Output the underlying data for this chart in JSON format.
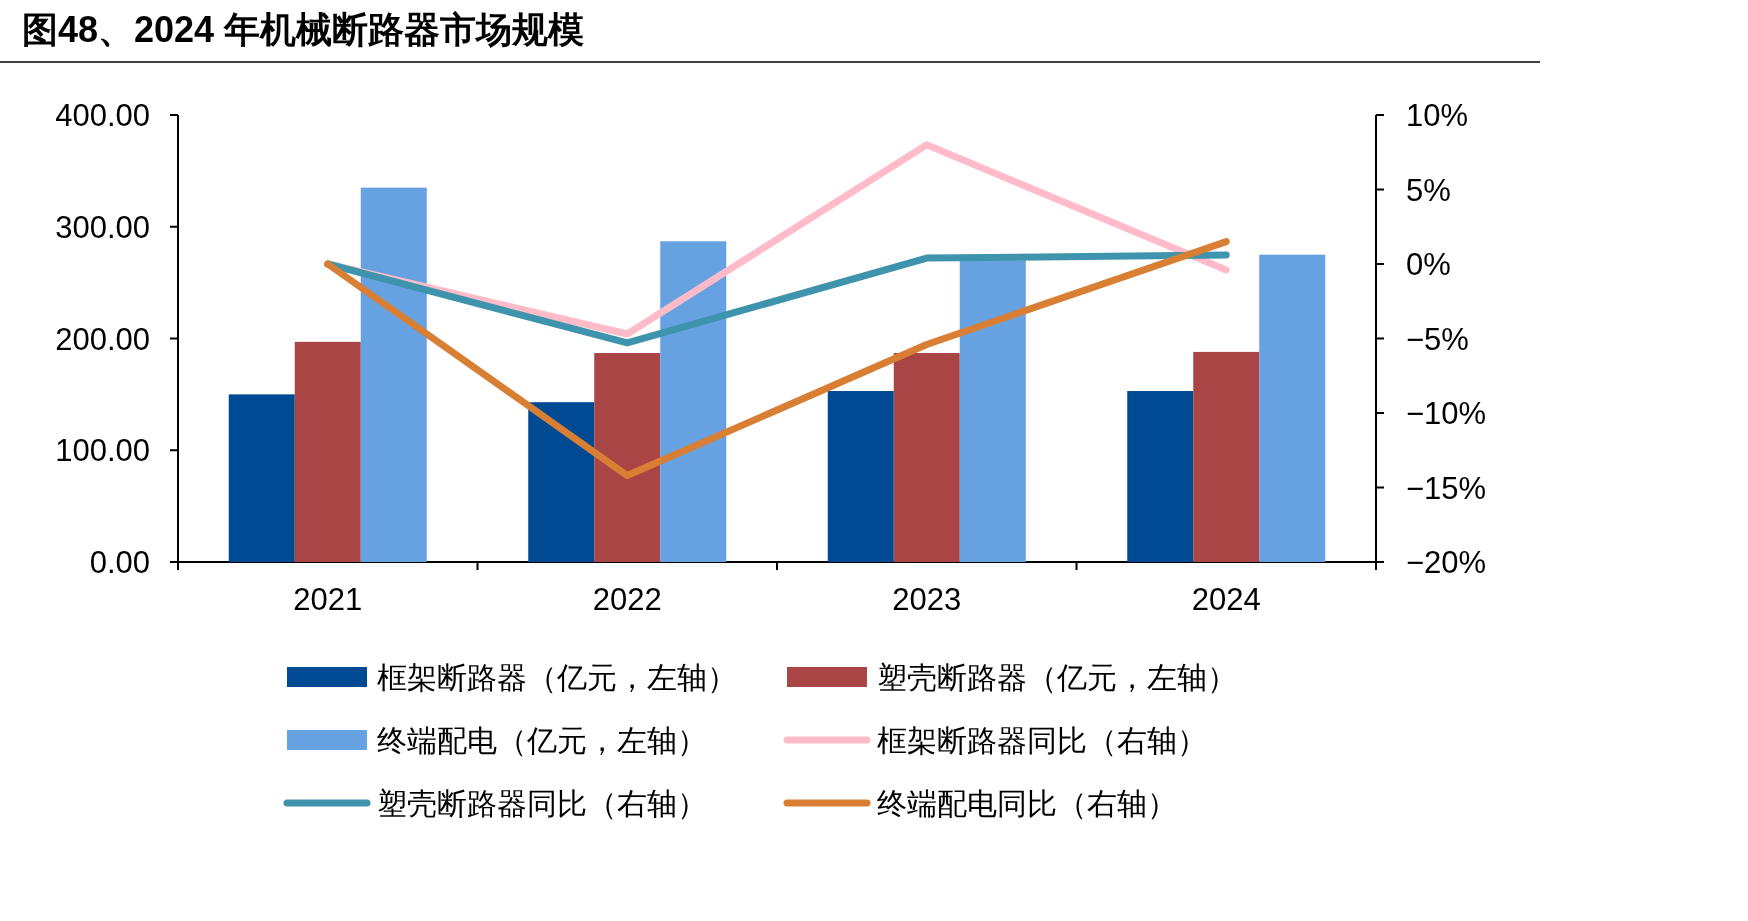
{
  "chart_data": {
    "type": "bar",
    "title": "图48、2024 年机械断路器市场规模",
    "categories": [
      "2021",
      "2022",
      "2023",
      "2024"
    ],
    "ylim": [
      0,
      400
    ],
    "yticks": [
      {
        "value": 0,
        "label": "0.00"
      },
      {
        "value": 100,
        "label": "100.00"
      },
      {
        "value": 200,
        "label": "200.00"
      },
      {
        "value": 300,
        "label": "300.00"
      },
      {
        "value": 400,
        "label": "400.00"
      }
    ],
    "y2lim": [
      -20,
      10
    ],
    "y2ticks": [
      {
        "value": -20,
        "label": "−20%"
      },
      {
        "value": -15,
        "label": "−15%"
      },
      {
        "value": -10,
        "label": "−10%"
      },
      {
        "value": -5,
        "label": "−5%"
      },
      {
        "value": 0,
        "label": "0%"
      },
      {
        "value": 5,
        "label": "5%"
      },
      {
        "value": 10,
        "label": "10%"
      }
    ],
    "grid": false,
    "legend": "bottom",
    "series": [
      {
        "name": "框架断路器（亿元，左轴）",
        "color": "#004a93",
        "values": [
          150,
          143,
          153,
          153
        ]
      },
      {
        "name": "塑壳断路器（亿元，左轴）",
        "color": "#a94545",
        "values": [
          197,
          187,
          187,
          188
        ]
      },
      {
        "name": "终端配电（亿元，左轴）",
        "color": "#66a1e2",
        "values": [
          335,
          287,
          270,
          275
        ]
      },
      {
        "name": "框架断路器同比（右轴）",
        "type": "line",
        "axis": "y2",
        "color": "#ffbcc8",
        "values": [
          0,
          -4.7,
          8.0,
          -0.4
        ]
      },
      {
        "name": "塑壳断路器同比（右轴）",
        "type": "line",
        "axis": "y2",
        "color": "#3e94ac",
        "values": [
          0,
          -5.3,
          0.4,
          0.6
        ]
      },
      {
        "name": "终端配电同比（右轴）",
        "type": "line",
        "axis": "y2",
        "color": "#d97f34",
        "values": [
          0,
          -14.2,
          -5.4,
          1.5
        ]
      }
    ]
  }
}
